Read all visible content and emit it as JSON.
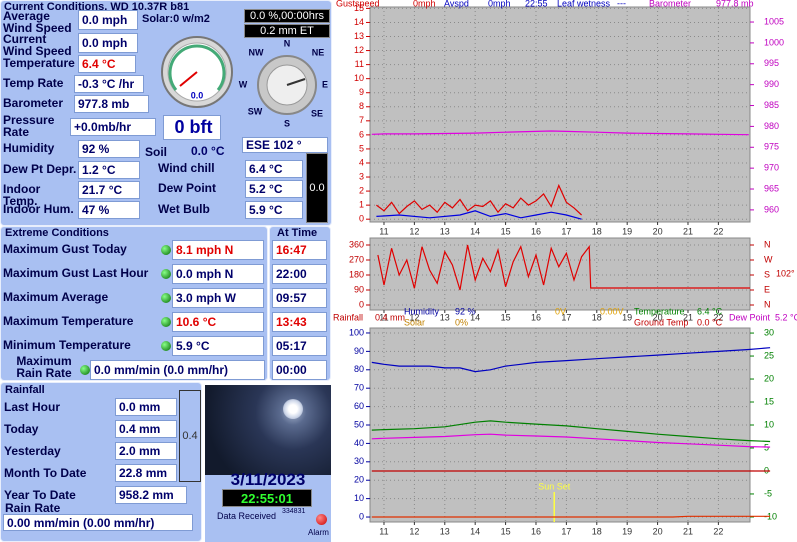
{
  "current": {
    "title": "Current Conditions, WD 10.37R b81",
    "rows": [
      {
        "label": "Average Wind Speed",
        "value": "0.0 mph"
      },
      {
        "label": "Current Wind Speed",
        "value": "0.0 mph"
      },
      {
        "label": "Temperature",
        "value": "6.4 °C"
      },
      {
        "label": "Temp Rate",
        "value": "-0.3 °C /hr"
      },
      {
        "label": "Barometer",
        "value": "977.8 mb"
      },
      {
        "label": "Pressure Rate",
        "value": "+0.0mb/hr"
      },
      {
        "label": "Humidity",
        "value": "92 %"
      },
      {
        "label": "Dew Pt Depr.",
        "value": "1.2 °C"
      },
      {
        "label": "Indoor Temp.",
        "value": "21.7 °C"
      },
      {
        "label": "Indoor Hum.",
        "value": "47 %"
      }
    ],
    "rows2": [
      {
        "label": "Soil",
        "value": "0.0 °C"
      },
      {
        "label": "Wind chill",
        "value": "6.4 °C"
      },
      {
        "label": "Dew Point",
        "value": "5.2 °C"
      },
      {
        "label": "Wet Bulb",
        "value": "5.9 °C"
      }
    ],
    "solar": "Solar:0 w/m2",
    "sunshine": "0.0 %,00:00hrs",
    "et": "0.2 mm ET",
    "wind_gauge": "0.0",
    "beaufort": "0 bft",
    "wind_direction": "ESE  102 °",
    "indoor_box": "0.0",
    "compass": [
      "N",
      "NE",
      "E",
      "SE",
      "S",
      "SW",
      "W",
      "NW"
    ]
  },
  "extremes": {
    "title": "Extreme Conditions",
    "time_title": "At Time",
    "rows": [
      {
        "label": "Maximum Gust Today",
        "value": "8.1 mph   N",
        "time": "16:47"
      },
      {
        "label": "Maximum Gust Last Hour",
        "value": "0.0 mph   N",
        "time": "22:00"
      },
      {
        "label": "Maximum Average",
        "value": "3.0 mph   W",
        "time": "09:57"
      },
      {
        "label": "Maximum Temperature",
        "value": "10.6 °C",
        "time": "13:43"
      },
      {
        "label": "Minimum Temperature",
        "value": "5.9 °C",
        "time": "05:17"
      },
      {
        "label": "Maximum Rain Rate",
        "value": "0.0 mm/min (0.0 mm/hr)",
        "time": "00:00"
      }
    ]
  },
  "rainfall": {
    "title": "Rainfall",
    "rows": [
      {
        "label": "Last Hour",
        "value": "0.0 mm"
      },
      {
        "label": "Today",
        "value": "0.4 mm"
      },
      {
        "label": "Yesterday",
        "value": "2.0 mm"
      },
      {
        "label": "Month To Date",
        "value": "22.8 mm"
      },
      {
        "label": "Year To Date",
        "value": "958.2 mm"
      }
    ],
    "rate_label": "Rain Rate",
    "rate": "0.00 mm/min (0.00 mm/hr)",
    "gauge": "0.4"
  },
  "status": {
    "date": "3/11/2023",
    "time": "22:55:01",
    "received_label": "Data Received",
    "received_count": "334831",
    "alarm": "Alarm"
  },
  "graphs": [
    {
      "type": "line",
      "header": [
        {
          "text": "Gustspeed",
          "color": "#d00000"
        },
        {
          "text": "0mph",
          "color": "#d00000"
        },
        {
          "text": "Avspd",
          "color": "#0000c0"
        },
        {
          "text": "0mph",
          "color": "#0000c0"
        },
        {
          "text": "22:55",
          "color": "#0000c0"
        },
        {
          "text": "Leaf wetness",
          "color": "#0000c0"
        },
        {
          "text": "---",
          "color": "#0000c0"
        },
        {
          "text": "Barometer",
          "color": "#c000c0"
        },
        {
          "text": "977.8 mb",
          "color": "#c000c0"
        }
      ],
      "xlim": [
        10.54,
        23.04
      ],
      "xticks": [
        11,
        12,
        13,
        14,
        15,
        16,
        17,
        18,
        19,
        20,
        21,
        22
      ],
      "ylim": [
        -0.2,
        15.1
      ],
      "yticks": [
        0,
        1,
        2,
        3,
        4,
        5,
        6,
        7,
        8,
        9,
        10,
        11,
        12,
        13,
        14,
        15
      ],
      "y_color": "#d00000",
      "y2lim": [
        957.1,
        1008.6
      ],
      "y2ticks": [
        960,
        965,
        970,
        975,
        980,
        985,
        990,
        995,
        1000,
        1005
      ],
      "y2_color": "#c000c0",
      "grid": true,
      "series": [
        {
          "color": "#e000e0",
          "axis": "y2",
          "x": [
            10.6,
            11,
            12,
            13,
            14,
            15,
            16,
            16.5,
            17,
            18,
            19,
            20,
            21,
            22,
            23
          ],
          "values": [
            978.1,
            978.2,
            978.2,
            978.3,
            978.4,
            978.6,
            978.8,
            978.9,
            978.8,
            978.6,
            978.4,
            978.3,
            978.2,
            978.1,
            978.0
          ]
        },
        {
          "color": "#e00000",
          "x": [
            10.75,
            11,
            11.25,
            11.5,
            11.75,
            12,
            12.25,
            12.5,
            12.75,
            13,
            13.25,
            13.5,
            13.75,
            14,
            14.25,
            14.5,
            14.75,
            15,
            15.25,
            15.5,
            15.75,
            16,
            16.25,
            16.5,
            16.75,
            17,
            17.25,
            17.5
          ],
          "values": [
            1.0,
            0.6,
            1.2,
            0.4,
            0.9,
            1.3,
            0.7,
            1.0,
            0.5,
            1.2,
            0.8,
            1.4,
            0.6,
            1.0,
            0.9,
            1.3,
            0.5,
            1.1,
            0.8,
            1.5,
            1.0,
            1.3,
            1.8,
            0.9,
            2.4,
            1.2,
            0.8,
            0.3
          ]
        },
        {
          "color": "#0000e0",
          "x": [
            10.75,
            11.5,
            12.5,
            13.5,
            14,
            14.5,
            15,
            15.5,
            16,
            16.5,
            17,
            17.5
          ],
          "values": [
            0.2,
            0.3,
            0.1,
            0.3,
            0.6,
            0.2,
            0.4,
            0.1,
            0.3,
            0.5,
            0.3,
            0
          ]
        }
      ]
    },
    {
      "type": "line",
      "xlim": [
        10.54,
        23.04
      ],
      "xticks": [
        11,
        12,
        13,
        14,
        15,
        16,
        17,
        18,
        19,
        20,
        21,
        22
      ],
      "ylim": [
        -30,
        402
      ],
      "yticks": [
        0,
        90,
        180,
        270,
        360
      ],
      "y_color": "#c00000",
      "y2lim": [
        -30,
        402
      ],
      "y2ticks": [
        {
          "value": 360,
          "label": "N"
        },
        {
          "value": 270,
          "label": "W"
        },
        {
          "value": 180,
          "label": "S"
        },
        {
          "value": 90,
          "label": "E"
        },
        {
          "value": 0,
          "label": "N"
        }
      ],
      "y2_color": "#c00000",
      "y2_note": "102°",
      "grid": true,
      "series": [
        {
          "color": "#e00000",
          "x": [
            10.8,
            11.0,
            11.25,
            11.5,
            11.75,
            12.0,
            12.25,
            12.5,
            12.75,
            13.0,
            13.25,
            13.5,
            13.75,
            14.0,
            14.25,
            14.5,
            14.75,
            15.0,
            15.25,
            15.5,
            15.75,
            16.0,
            16.25,
            16.5,
            16.75,
            17.0,
            17.25,
            17.5,
            17.75,
            17.8,
            18.0,
            23.04
          ],
          "values": [
            300,
            120,
            340,
            180,
            270,
            100,
            350,
            210,
            130,
            320,
            240,
            90,
            360,
            150,
            280,
            200,
            330,
            110,
            260,
            350,
            170,
            300,
            120,
            340,
            230,
            310,
            150,
            290,
            350,
            102,
            102,
            102
          ]
        }
      ]
    },
    {
      "type": "line",
      "header": [
        {
          "text": "Rainfall",
          "color": "#c00000"
        },
        {
          "text": "0.4 mm",
          "color": "#c00000"
        },
        {
          "text": "Humidity",
          "color": "#0000a0"
        },
        {
          "text": "Solar",
          "color": "#c08000"
        },
        {
          "text": "92 %",
          "color": "#0000a0"
        },
        {
          "text": "0%",
          "color": "#c08000"
        },
        {
          "text": "0V",
          "color": "#e0a000"
        },
        {
          "text": "0.00V",
          "color": "#e0a000"
        },
        {
          "text": "Temperature",
          "color": "#008000"
        },
        {
          "text": "Ground Temp",
          "color": "#c00000"
        },
        {
          "text": "6.4 °C",
          "color": "#008000"
        },
        {
          "text": "0.0 °C",
          "color": "#c00000"
        },
        {
          "text": "Dew Point",
          "color": "#c000c0"
        },
        {
          "text": "5.2 °C",
          "color": "#c000c0"
        }
      ],
      "xlim": [
        10.54,
        23.04
      ],
      "xticks": [
        11,
        12,
        13,
        14,
        15,
        16,
        17,
        18,
        19,
        20,
        21,
        22
      ],
      "ylim": [
        -2.7,
        102.7
      ],
      "yticks": [
        0,
        10,
        20,
        30,
        40,
        50,
        60,
        70,
        80,
        90,
        100
      ],
      "y_color": "#0000a0",
      "y2lim": [
        -11.1,
        31.1
      ],
      "y2ticks": [
        -10,
        -5,
        0,
        5,
        10,
        15,
        20,
        25,
        30
      ],
      "y2_color": "#008000",
      "grid": true,
      "annotations": [
        {
          "x": 16.6,
          "label": "Sun Set"
        }
      ],
      "series": [
        {
          "color": "#0000c0",
          "x": [
            10.6,
            11,
            11.5,
            12,
            12.5,
            13,
            13.5,
            14,
            14.5,
            15,
            15.5,
            16,
            17,
            18,
            19,
            20,
            21,
            22,
            23,
            23.7
          ],
          "values": [
            84,
            83,
            82,
            82,
            82,
            81,
            81,
            79,
            80,
            82,
            83,
            84,
            85,
            86,
            87,
            88,
            89,
            90,
            91,
            92
          ]
        },
        {
          "color": "#008000",
          "axis": "y2",
          "x": [
            10.6,
            11,
            12,
            13,
            14,
            14.5,
            15,
            16,
            17,
            18,
            19,
            20,
            21,
            22,
            23,
            23.7
          ],
          "values": [
            8.9,
            9.0,
            9.2,
            9.6,
            10.6,
            10.9,
            10.6,
            10.2,
            9.8,
            9.2,
            8.6,
            8.0,
            7.5,
            7.0,
            6.6,
            6.4
          ]
        },
        {
          "color": "#e000e0",
          "axis": "y2",
          "x": [
            10.6,
            11,
            12,
            13,
            14,
            14.5,
            15,
            16,
            17,
            18,
            19,
            20,
            21,
            22,
            23,
            23.7
          ],
          "values": [
            7.0,
            7.1,
            7.3,
            7.5,
            7.9,
            8.0,
            7.8,
            7.6,
            7.4,
            7.0,
            6.6,
            6.2,
            5.9,
            5.6,
            5.3,
            5.2
          ]
        },
        {
          "color": "#c00000",
          "axis": "y2",
          "x": [
            10.6,
            23.7
          ],
          "values": [
            0.0,
            0.0
          ]
        },
        {
          "color": "#e03000",
          "x": [
            10.6,
            20.5,
            21,
            22,
            23.7
          ],
          "values": [
            0,
            0,
            0.4,
            0.4,
            0.4
          ]
        }
      ]
    }
  ]
}
